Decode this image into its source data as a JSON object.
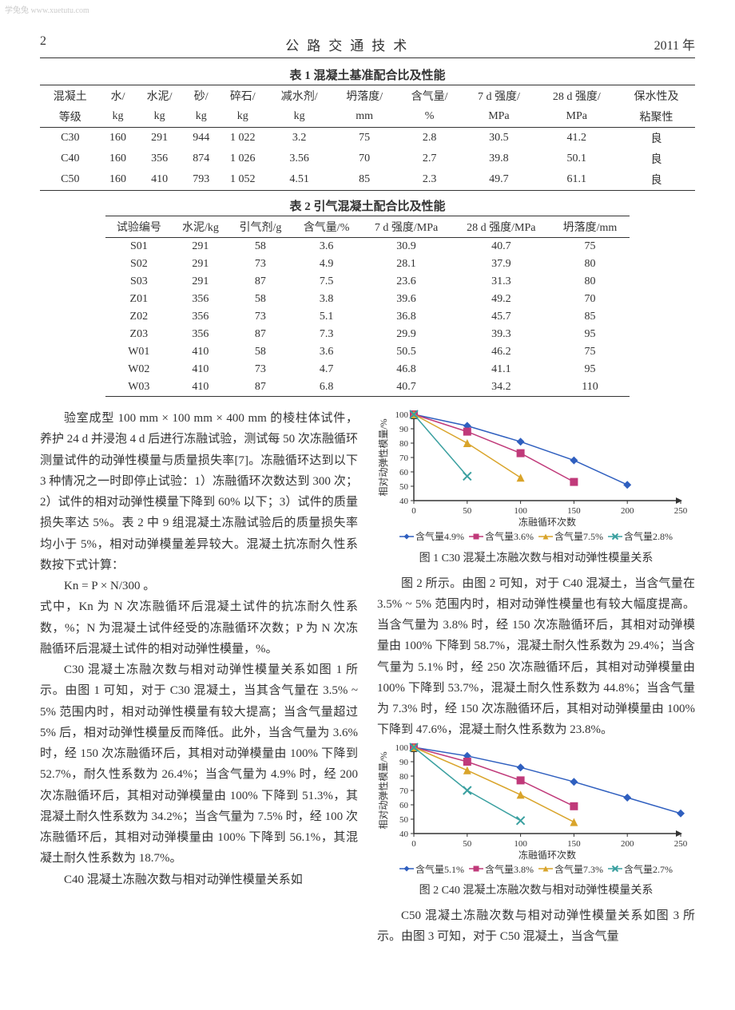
{
  "watermark": "学兔兔 www.xuetutu.com",
  "header": {
    "page": "2",
    "journal": "公路交通技术",
    "year": "2011 年"
  },
  "table1": {
    "caption": "表 1  混凝土基准配合比及性能",
    "head1": [
      "混凝土",
      "水/",
      "水泥/",
      "砂/",
      "碎石/",
      "减水剂/",
      "坍落度/",
      "含气量/",
      "7 d 强度/",
      "28 d 强度/",
      "保水性及"
    ],
    "head2": [
      "等级",
      "kg",
      "kg",
      "kg",
      "kg",
      "kg",
      "mm",
      "%",
      "MPa",
      "MPa",
      "粘聚性"
    ],
    "rows": [
      [
        "C30",
        "160",
        "291",
        "944",
        "1 022",
        "3.2",
        "75",
        "2.8",
        "30.5",
        "41.2",
        "良"
      ],
      [
        "C40",
        "160",
        "356",
        "874",
        "1 026",
        "3.56",
        "70",
        "2.7",
        "39.8",
        "50.1",
        "良"
      ],
      [
        "C50",
        "160",
        "410",
        "793",
        "1 052",
        "4.51",
        "85",
        "2.3",
        "49.7",
        "61.1",
        "良"
      ]
    ]
  },
  "table2": {
    "caption": "表 2  引气混凝土配合比及性能",
    "head": [
      "试验编号",
      "水泥/kg",
      "引气剂/g",
      "含气量/%",
      "7 d 强度/MPa",
      "28 d 强度/MPa",
      "坍落度/mm"
    ],
    "rows": [
      [
        "S01",
        "291",
        "58",
        "3.6",
        "30.9",
        "40.7",
        "75"
      ],
      [
        "S02",
        "291",
        "73",
        "4.9",
        "28.1",
        "37.9",
        "80"
      ],
      [
        "S03",
        "291",
        "87",
        "7.5",
        "23.6",
        "31.3",
        "80"
      ],
      [
        "Z01",
        "356",
        "58",
        "3.8",
        "39.6",
        "49.2",
        "70"
      ],
      [
        "Z02",
        "356",
        "73",
        "5.1",
        "36.8",
        "45.7",
        "85"
      ],
      [
        "Z03",
        "356",
        "87",
        "7.3",
        "29.9",
        "39.3",
        "95"
      ],
      [
        "W01",
        "410",
        "58",
        "3.6",
        "50.5",
        "46.2",
        "75"
      ],
      [
        "W02",
        "410",
        "73",
        "4.7",
        "46.8",
        "41.1",
        "95"
      ],
      [
        "W03",
        "410",
        "87",
        "6.8",
        "40.7",
        "34.2",
        "110"
      ]
    ]
  },
  "left_paras": [
    "验室成型 100 mm × 100 mm × 400 mm 的棱柱体试件，养护 24 d 并浸泡 4 d 后进行冻融试验，测试每 50 次冻融循环测量试件的动弹性模量与质量损失率[7]。冻融循环达到以下 3 种情况之一时即停止试验：1）冻融循环次数达到 300 次；2）试件的相对动弹性模量下降到 60% 以下；3）试件的质量损失率达 5%。表 2 中 9 组混凝土冻融试验后的质量损失率均小于 5%，相对动弹模量差异较大。混凝土抗冻耐久性系数按下式计算：",
    "式中，Kn 为 N 次冻融循环后混凝土试件的抗冻耐久性系数，%；N 为混凝土试件经受的冻融循环次数；P 为 N 次冻融循环后混凝土试件的相对动弹性模量，%。",
    "C30 混凝土冻融次数与相对动弹性模量关系如图 1 所示。由图 1 可知，对于 C30 混凝土，当其含气量在 3.5% ~ 5% 范围内时，相对动弹性模量有较大提高；当含气量超过 5% 后，相对动弹性模量反而降低。此外，当含气量为 3.6% 时，经 150 次冻融循环后，其相对动弹模量由 100% 下降到 52.7%，耐久性系数为 26.4%；当含气量为 4.9% 时，经 200 次冻融循环后，其相对动弹模量由 100% 下降到 51.3%，其混凝土耐久性系数为 34.2%；当含气量为 7.5% 时，经 100 次冻融循环后，其相对动弹模量由 100% 下降到 56.1%，其混凝土耐久性系数为 18.7%。",
    "C40 混凝土冻融次数与相对动弹性模量关系如"
  ],
  "formula": "Kn = P × N/300 。",
  "right_paras": [
    "图 2 所示。由图 2 可知，对于 C40 混凝土，当含气量在 3.5% ~ 5% 范围内时，相对动弹性模量也有较大幅度提高。当含气量为 3.8% 时，经 150 次冻融循环后，其相对动弹模量由 100% 下降到 58.7%，混凝土耐久性系数为 29.4%；当含气量为 5.1% 时，经 250 次冻融循环后，其相对动弹模量由 100% 下降到 53.7%，混凝土耐久性系数为 44.8%；当含气量为 7.3% 时，经 150 次冻融循环后，其相对动弹模量由 100% 下降到 47.6%，混凝土耐久性系数为 23.8%。",
    "C50 混凝土冻融次数与相对动弹性模量关系如图 3 所示。由图 3 可知，对于 C50 混凝土，当含气量"
  ],
  "fig1": {
    "caption": "图 1  C30 混凝土冻融次数与相对动弹性模量关系",
    "xlabel": "冻融循环次数",
    "ylabel": "相对动弹性模量/%",
    "xlim": [
      0,
      250
    ],
    "ylim": [
      40,
      100
    ],
    "xticks": [
      0,
      50,
      100,
      150,
      200,
      250
    ],
    "yticks": [
      40,
      50,
      60,
      70,
      80,
      90,
      100
    ],
    "series": [
      {
        "name": "含气量4.9%",
        "color": "#2f5fbf",
        "marker": "diamond",
        "data": [
          [
            0,
            100
          ],
          [
            50,
            92
          ],
          [
            100,
            81
          ],
          [
            150,
            68
          ],
          [
            200,
            51
          ]
        ]
      },
      {
        "name": "含气量3.6%",
        "color": "#c03a7a",
        "marker": "square",
        "data": [
          [
            0,
            100
          ],
          [
            50,
            88
          ],
          [
            100,
            73
          ],
          [
            150,
            53
          ]
        ]
      },
      {
        "name": "含气量7.5%",
        "color": "#d9a42a",
        "marker": "triangle",
        "data": [
          [
            0,
            100
          ],
          [
            50,
            80
          ],
          [
            100,
            56
          ]
        ]
      },
      {
        "name": "含气量2.8%",
        "color": "#3aa0a0",
        "marker": "x",
        "data": [
          [
            0,
            100
          ],
          [
            50,
            57
          ]
        ]
      }
    ],
    "axis_color": "#333333",
    "line_width": 1.5,
    "marker_size": 5,
    "font_size": 11
  },
  "fig2": {
    "caption": "图 2  C40 混凝土冻融次数与相对动弹性模量关系",
    "xlabel": "冻融循环次数",
    "ylabel": "相对动弹性模量/%",
    "xlim": [
      0,
      250
    ],
    "ylim": [
      40,
      100
    ],
    "xticks": [
      0,
      50,
      100,
      150,
      200,
      250
    ],
    "yticks": [
      40,
      50,
      60,
      70,
      80,
      90,
      100
    ],
    "series": [
      {
        "name": "含气量5.1%",
        "color": "#2f5fbf",
        "marker": "diamond",
        "data": [
          [
            0,
            100
          ],
          [
            50,
            94
          ],
          [
            100,
            86
          ],
          [
            150,
            76
          ],
          [
            200,
            65
          ],
          [
            250,
            54
          ]
        ]
      },
      {
        "name": "含气量3.8%",
        "color": "#c03a7a",
        "marker": "square",
        "data": [
          [
            0,
            100
          ],
          [
            50,
            90
          ],
          [
            100,
            77
          ],
          [
            150,
            59
          ]
        ]
      },
      {
        "name": "含气量7.3%",
        "color": "#d9a42a",
        "marker": "triangle",
        "data": [
          [
            0,
            100
          ],
          [
            50,
            84
          ],
          [
            100,
            67
          ],
          [
            150,
            48
          ]
        ]
      },
      {
        "name": "含气量2.7%",
        "color": "#3aa0a0",
        "marker": "x",
        "data": [
          [
            0,
            100
          ],
          [
            50,
            70
          ],
          [
            100,
            49
          ]
        ]
      }
    ],
    "axis_color": "#333333",
    "line_width": 1.5,
    "marker_size": 5,
    "font_size": 11
  }
}
